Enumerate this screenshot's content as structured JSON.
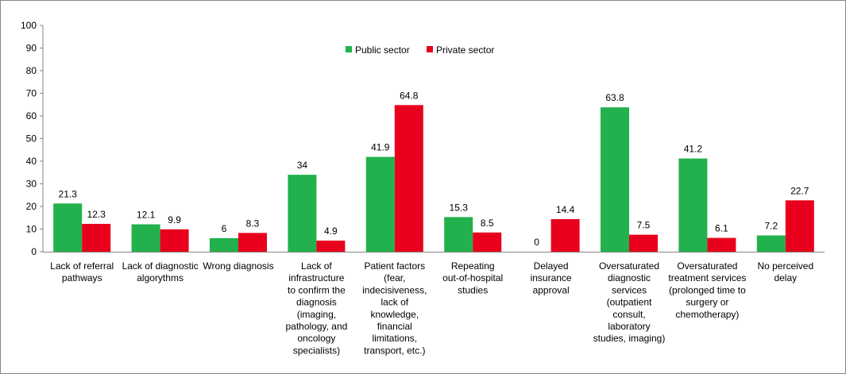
{
  "chart_data": {
    "type": "bar",
    "title": "",
    "xlabel": "",
    "ylabel": "",
    "ylim": [
      0,
      100
    ],
    "yticks": [
      "0",
      "10",
      "20",
      "30",
      "40",
      "50",
      "60",
      "70",
      "80",
      "90",
      "100"
    ],
    "grid": false,
    "legend_position": "top-center",
    "categories": [
      [
        "Lack of referral",
        "pathways"
      ],
      [
        "Lack of diagnostic",
        "algorythms"
      ],
      [
        "Wrong diagnosis"
      ],
      [
        "Lack of",
        "infrastructure",
        "to confirm the",
        "diagnosis",
        "(imaging,",
        "pathology, and",
        "oncology",
        "specialists)"
      ],
      [
        "Patient factors",
        "(fear,",
        "indecisiveness,",
        "lack of",
        "knowledge,",
        "financial",
        "limitations,",
        "transport, etc.)"
      ],
      [
        "Repeating",
        "out-of-hospital",
        "studies"
      ],
      [
        "Delayed",
        "insurance",
        "approval"
      ],
      [
        "Oversaturated",
        "diagnostic",
        "services",
        "(outpatient",
        "consult,",
        "laboratory",
        "studies, imaging)"
      ],
      [
        "Oversaturated",
        "treatment services",
        "(prolonged time to",
        "surgery or",
        "chemotherapy)"
      ],
      [
        "No perceived",
        "delay"
      ]
    ],
    "series": [
      {
        "name": "Public sector",
        "color": "#22B14C",
        "values": [
          21.3,
          12.1,
          6,
          34,
          41.9,
          15.3,
          0,
          63.8,
          41.2,
          7.2
        ],
        "labels": [
          "21.3",
          "12.1",
          "6",
          "34",
          "41.9",
          "15.3",
          "0",
          "63.8",
          "41.2",
          "7.2"
        ]
      },
      {
        "name": "Private sector",
        "color": "#E8001C",
        "values": [
          12.3,
          9.9,
          8.3,
          4.9,
          64.8,
          8.5,
          14.4,
          7.5,
          6.1,
          22.7
        ],
        "labels": [
          "12.3",
          "9.9",
          "8.3",
          "4.9",
          "64.8",
          "8.5",
          "14.4",
          "7.5",
          "6.1",
          "22.7"
        ]
      }
    ]
  }
}
